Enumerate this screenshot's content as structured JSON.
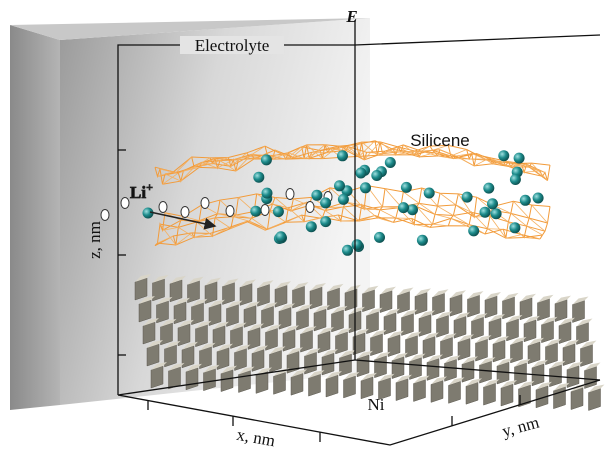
{
  "figure": {
    "axis_e": "E",
    "electrolyte": "Electrolyte",
    "silicene": "Silicene",
    "li_ion": {
      "base": "Li",
      "sup": "+"
    },
    "z_axis": "z, nm",
    "x_axis": "x, nm",
    "y_axis": "y, nm",
    "substrate": "Ni"
  }
}
